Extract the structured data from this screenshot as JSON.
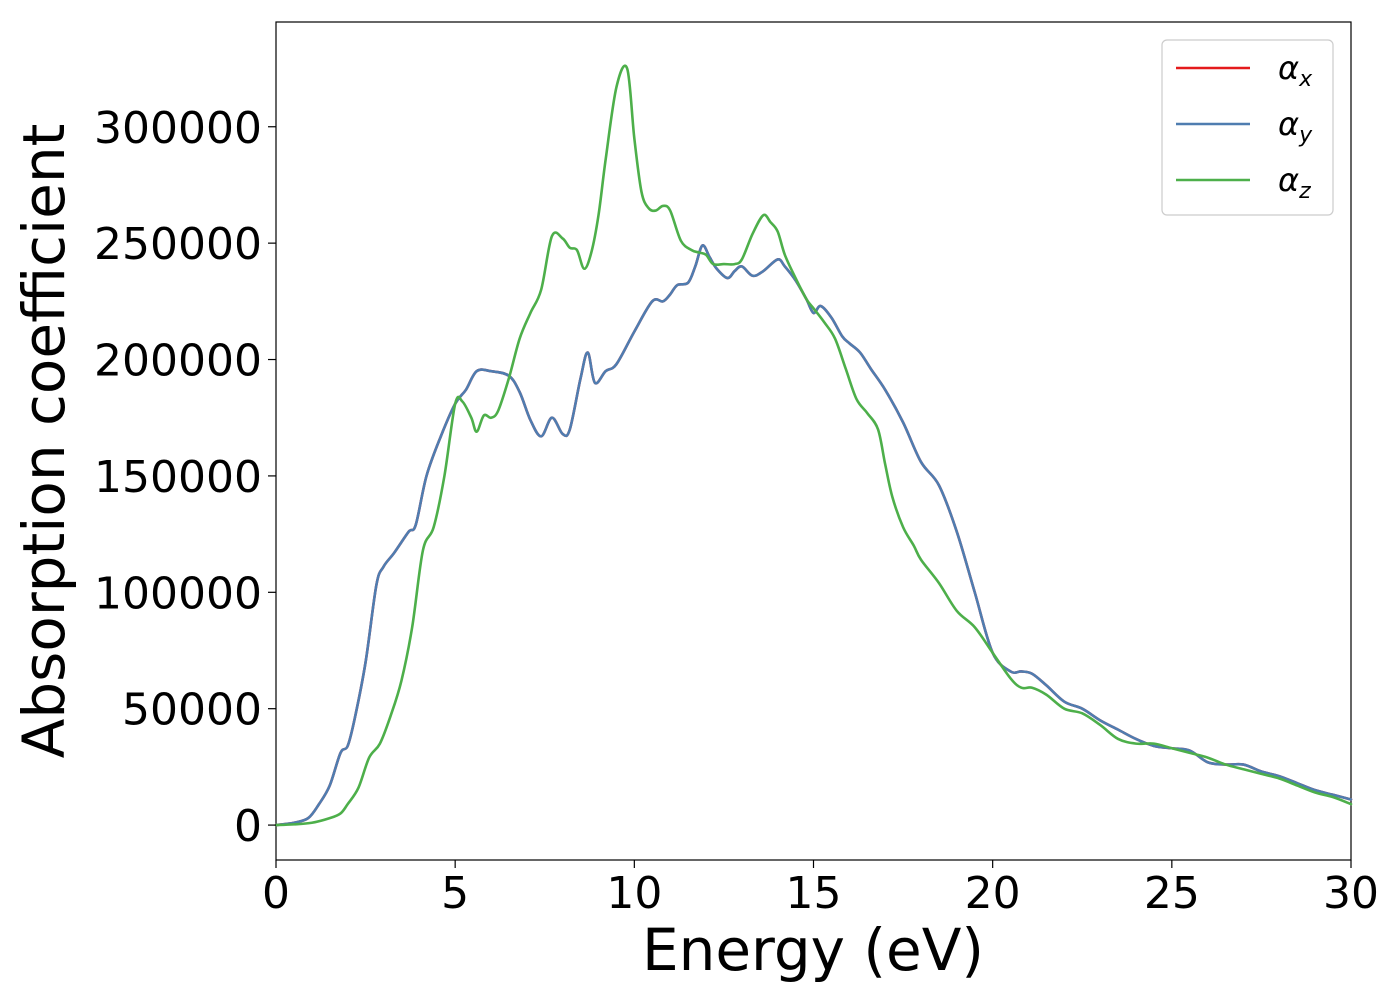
{
  "chart_data": {
    "type": "line",
    "xlabel": "Energy (eV)",
    "ylabel": "Absorption coefficient",
    "xlim": [
      0,
      30
    ],
    "ylim": [
      -15000,
      345000
    ],
    "xticks": [
      0,
      5,
      10,
      15,
      20,
      25,
      30
    ],
    "yticks": [
      0,
      50000,
      100000,
      150000,
      200000,
      250000,
      300000
    ],
    "grid": false,
    "legend_position": "top-right",
    "series": [
      {
        "name": "αx",
        "legend_base": "α",
        "legend_sub": "x",
        "color": "#e41a1c",
        "x": [
          0,
          0.5,
          0.9,
          1.2,
          1.5,
          1.8,
          2.0,
          2.2,
          2.5,
          2.8,
          3.0,
          3.3,
          3.7,
          3.9,
          4.2,
          4.6,
          5.0,
          5.3,
          5.6,
          6.0,
          6.5,
          6.8,
          7.1,
          7.4,
          7.7,
          8.0,
          8.2,
          8.5,
          8.7,
          8.9,
          9.2,
          9.5,
          10.0,
          10.5,
          10.8,
          11.0,
          11.2,
          11.5,
          11.7,
          11.9,
          12.1,
          12.3,
          12.6,
          12.8,
          13.0,
          13.3,
          13.6,
          14.0,
          14.2,
          14.5,
          14.8,
          15.0,
          15.2,
          15.5,
          15.8,
          16.0,
          16.3,
          16.6,
          17.0,
          17.5,
          18.0,
          18.5,
          19.0,
          19.5,
          20.0,
          20.5,
          20.8,
          21.1,
          21.5,
          22.0,
          22.5,
          23.0,
          23.5,
          24.0,
          24.5,
          25.0,
          25.5,
          26.0,
          26.5,
          27.0,
          27.5,
          28.0,
          28.5,
          29.0,
          29.5,
          30.0
        ],
        "y": [
          0,
          1000,
          3000,
          9000,
          17000,
          31000,
          34000,
          46000,
          70000,
          103000,
          111000,
          117000,
          126000,
          129000,
          150000,
          167000,
          181000,
          187000,
          195000,
          195000,
          193000,
          186000,
          174000,
          167000,
          175000,
          168000,
          170000,
          192000,
          203000,
          190000,
          195000,
          198000,
          212000,
          225000,
          225000,
          228000,
          232000,
          233000,
          240000,
          249000,
          244000,
          239000,
          235000,
          238000,
          240000,
          236000,
          238000,
          243000,
          240000,
          234000,
          226000,
          220000,
          223000,
          218000,
          210000,
          207000,
          203000,
          196000,
          187000,
          173000,
          156000,
          146000,
          126000,
          100000,
          74000,
          66000,
          66000,
          65000,
          60000,
          53000,
          50000,
          45000,
          41000,
          37000,
          34000,
          33000,
          32000,
          27000,
          26000,
          26000,
          23000,
          21000,
          18000,
          15000,
          13000,
          11000
        ]
      },
      {
        "name": "αy",
        "legend_base": "α",
        "legend_sub": "y",
        "color": "#4f7db0",
        "x": [
          0,
          0.5,
          0.9,
          1.2,
          1.5,
          1.8,
          2.0,
          2.2,
          2.5,
          2.8,
          3.0,
          3.3,
          3.7,
          3.9,
          4.2,
          4.6,
          5.0,
          5.3,
          5.6,
          6.0,
          6.5,
          6.8,
          7.1,
          7.4,
          7.7,
          8.0,
          8.2,
          8.5,
          8.7,
          8.9,
          9.2,
          9.5,
          10.0,
          10.5,
          10.8,
          11.0,
          11.2,
          11.5,
          11.7,
          11.9,
          12.1,
          12.3,
          12.6,
          12.8,
          13.0,
          13.3,
          13.6,
          14.0,
          14.2,
          14.5,
          14.8,
          15.0,
          15.2,
          15.5,
          15.8,
          16.0,
          16.3,
          16.6,
          17.0,
          17.5,
          18.0,
          18.5,
          19.0,
          19.5,
          20.0,
          20.5,
          20.8,
          21.1,
          21.5,
          22.0,
          22.5,
          23.0,
          23.5,
          24.0,
          24.5,
          25.0,
          25.5,
          26.0,
          26.5,
          27.0,
          27.5,
          28.0,
          28.5,
          29.0,
          29.5,
          30.0
        ],
        "y": [
          0,
          1000,
          3000,
          9000,
          17000,
          31000,
          34000,
          46000,
          70000,
          103000,
          111000,
          117000,
          126000,
          129000,
          150000,
          167000,
          181000,
          187000,
          195000,
          195000,
          193000,
          186000,
          174000,
          167000,
          175000,
          168000,
          170000,
          192000,
          203000,
          190000,
          195000,
          198000,
          212000,
          225000,
          225000,
          228000,
          232000,
          233000,
          240000,
          249000,
          244000,
          239000,
          235000,
          238000,
          240000,
          236000,
          238000,
          243000,
          240000,
          234000,
          226000,
          220000,
          223000,
          218000,
          210000,
          207000,
          203000,
          196000,
          187000,
          173000,
          156000,
          146000,
          126000,
          100000,
          74000,
          66000,
          66000,
          65000,
          60000,
          53000,
          50000,
          45000,
          41000,
          37000,
          34000,
          33000,
          32000,
          27000,
          26000,
          26000,
          23000,
          21000,
          18000,
          15000,
          13000,
          11000
        ]
      },
      {
        "name": "αz",
        "legend_base": "α",
        "legend_sub": "z",
        "color": "#4daf4a",
        "x": [
          0,
          0.5,
          1.0,
          1.5,
          1.8,
          2.0,
          2.3,
          2.6,
          2.9,
          3.2,
          3.5,
          3.8,
          4.1,
          4.4,
          4.7,
          5.0,
          5.2,
          5.45,
          5.6,
          5.8,
          6.0,
          6.2,
          6.5,
          6.8,
          7.1,
          7.4,
          7.7,
          8.0,
          8.2,
          8.4,
          8.6,
          8.8,
          9.0,
          9.2,
          9.5,
          9.8,
          10.0,
          10.2,
          10.4,
          10.6,
          10.8,
          11.0,
          11.3,
          11.6,
          11.8,
          12.0,
          12.2,
          12.5,
          12.8,
          13.0,
          13.3,
          13.6,
          13.8,
          14.0,
          14.2,
          14.5,
          14.8,
          15.0,
          15.3,
          15.6,
          15.9,
          16.2,
          16.5,
          16.8,
          17.0,
          17.2,
          17.5,
          17.8,
          18.0,
          18.5,
          19.0,
          19.5,
          20.0,
          20.5,
          20.8,
          21.1,
          21.5,
          22.0,
          22.5,
          23.0,
          23.5,
          24.0,
          24.5,
          25.0,
          25.5,
          26.0,
          26.5,
          27.0,
          27.5,
          28.0,
          28.5,
          29.0,
          29.5,
          30.0
        ],
        "y": [
          0,
          300,
          1000,
          3000,
          5000,
          9000,
          16000,
          29000,
          35000,
          47000,
          62000,
          85000,
          118000,
          128000,
          150000,
          181000,
          182000,
          175000,
          169000,
          176000,
          175000,
          178000,
          192000,
          209000,
          220000,
          230000,
          253000,
          252000,
          248000,
          247000,
          239000,
          246000,
          262000,
          286000,
          317000,
          325000,
          295000,
          272000,
          265000,
          264000,
          266000,
          264000,
          251000,
          247000,
          246000,
          245000,
          241000,
          241000,
          241000,
          243000,
          254000,
          262000,
          259000,
          255000,
          245000,
          235000,
          226000,
          222000,
          216000,
          209000,
          196000,
          183000,
          177000,
          170000,
          155000,
          141000,
          128000,
          120000,
          114000,
          104000,
          92000,
          85000,
          74000,
          63000,
          59000,
          59000,
          56000,
          50000,
          48000,
          43000,
          37000,
          35000,
          35000,
          33000,
          31000,
          29000,
          26000,
          24000,
          22000,
          20000,
          17000,
          14000,
          12000,
          9000
        ]
      }
    ]
  }
}
